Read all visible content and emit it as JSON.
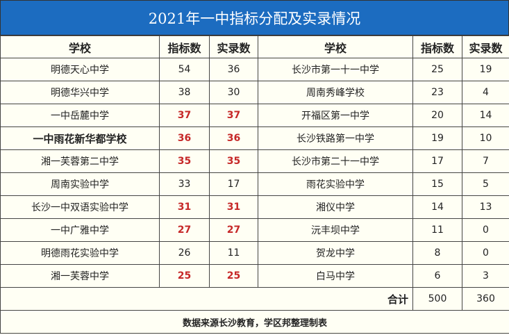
{
  "title": "2021年一中指标分配及实录情况",
  "headers": [
    "学校",
    "指标数",
    "实录数",
    "学校",
    "指标数",
    "实录数"
  ],
  "rows": [
    {
      "left": {
        "school": "明德天心中学",
        "quota": "54",
        "admitted": "36",
        "highlight": false,
        "bold": false
      },
      "right": {
        "school": "长沙市第一十一中学",
        "quota": "25",
        "admitted": "19"
      }
    },
    {
      "left": {
        "school": "明德华兴中学",
        "quota": "38",
        "admitted": "30",
        "highlight": false,
        "bold": false
      },
      "right": {
        "school": "周南秀峰学校",
        "quota": "23",
        "admitted": "4"
      }
    },
    {
      "left": {
        "school": "一中岳麓中学",
        "quota": "37",
        "admitted": "37",
        "highlight": true,
        "bold": false
      },
      "right": {
        "school": "开福区第一中学",
        "quota": "20",
        "admitted": "14"
      }
    },
    {
      "left": {
        "school": "一中雨花新华都学校",
        "quota": "36",
        "admitted": "36",
        "highlight": true,
        "bold": true
      },
      "right": {
        "school": "长沙铁路第一中学",
        "quota": "19",
        "admitted": "10"
      }
    },
    {
      "left": {
        "school": "湘一芙蓉第二中学",
        "quota": "35",
        "admitted": "35",
        "highlight": true,
        "bold": false
      },
      "right": {
        "school": "长沙市第二十一中学",
        "quota": "17",
        "admitted": "7"
      }
    },
    {
      "left": {
        "school": "周南实验中学",
        "quota": "33",
        "admitted": "17",
        "highlight": false,
        "bold": false
      },
      "right": {
        "school": "雨花实验中学",
        "quota": "15",
        "admitted": "5"
      }
    },
    {
      "left": {
        "school": "长沙一中双语实验中学",
        "quota": "31",
        "admitted": "31",
        "highlight": true,
        "bold": false
      },
      "right": {
        "school": "湘仪中学",
        "quota": "14",
        "admitted": "13"
      }
    },
    {
      "left": {
        "school": "一中广雅中学",
        "quota": "27",
        "admitted": "27",
        "highlight": true,
        "bold": false
      },
      "right": {
        "school": "沅丰坝中学",
        "quota": "11",
        "admitted": "0"
      }
    },
    {
      "left": {
        "school": "明德雨花实验中学",
        "quota": "26",
        "admitted": "11",
        "highlight": false,
        "bold": false
      },
      "right": {
        "school": "贺龙中学",
        "quota": "8",
        "admitted": "0"
      }
    },
    {
      "left": {
        "school": "湘一芙蓉中学",
        "quota": "25",
        "admitted": "25",
        "highlight": true,
        "bold": false
      },
      "right": {
        "school": "白马中学",
        "quota": "6",
        "admitted": "3"
      }
    }
  ],
  "total": {
    "label": "合计",
    "quota": "500",
    "admitted": "360"
  },
  "footer": "数据来源长沙教育，学区邦整理制表",
  "colors": {
    "title_bg": "#1c6cc0",
    "highlight": "#c62828",
    "background": "#fffff4"
  }
}
